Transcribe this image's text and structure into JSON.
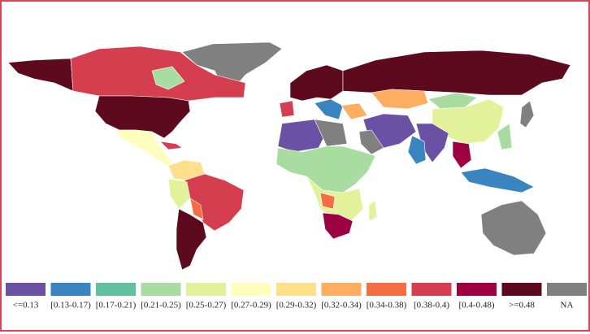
{
  "legend": {
    "items": [
      {
        "label": "<=0.13",
        "color": "#6a51a3"
      },
      {
        "label": "[0.13-0.17)",
        "color": "#3a84c0"
      },
      {
        "label": "[0.17-0.21)",
        "color": "#62c0a0"
      },
      {
        "label": "[0.21-0.25)",
        "color": "#a8dca0"
      },
      {
        "label": "[0.25-0.27)",
        "color": "#e2f29a"
      },
      {
        "label": "[0.27-0.29)",
        "color": "#fefebd"
      },
      {
        "label": "[0.29-0.32)",
        "color": "#fee08b"
      },
      {
        "label": "[0.32-0.34)",
        "color": "#fdae61"
      },
      {
        "label": "[0.34-0.38)",
        "color": "#f46d43"
      },
      {
        "label": "[0.38-0.4)",
        "color": "#d53e4f"
      },
      {
        "label": "[0.4-0.48)",
        "color": "#9e0142"
      },
      {
        "label": ">=0.48",
        "color": "#5e0a1e"
      },
      {
        "label": "NA",
        "color": "#808080"
      }
    ]
  }
}
